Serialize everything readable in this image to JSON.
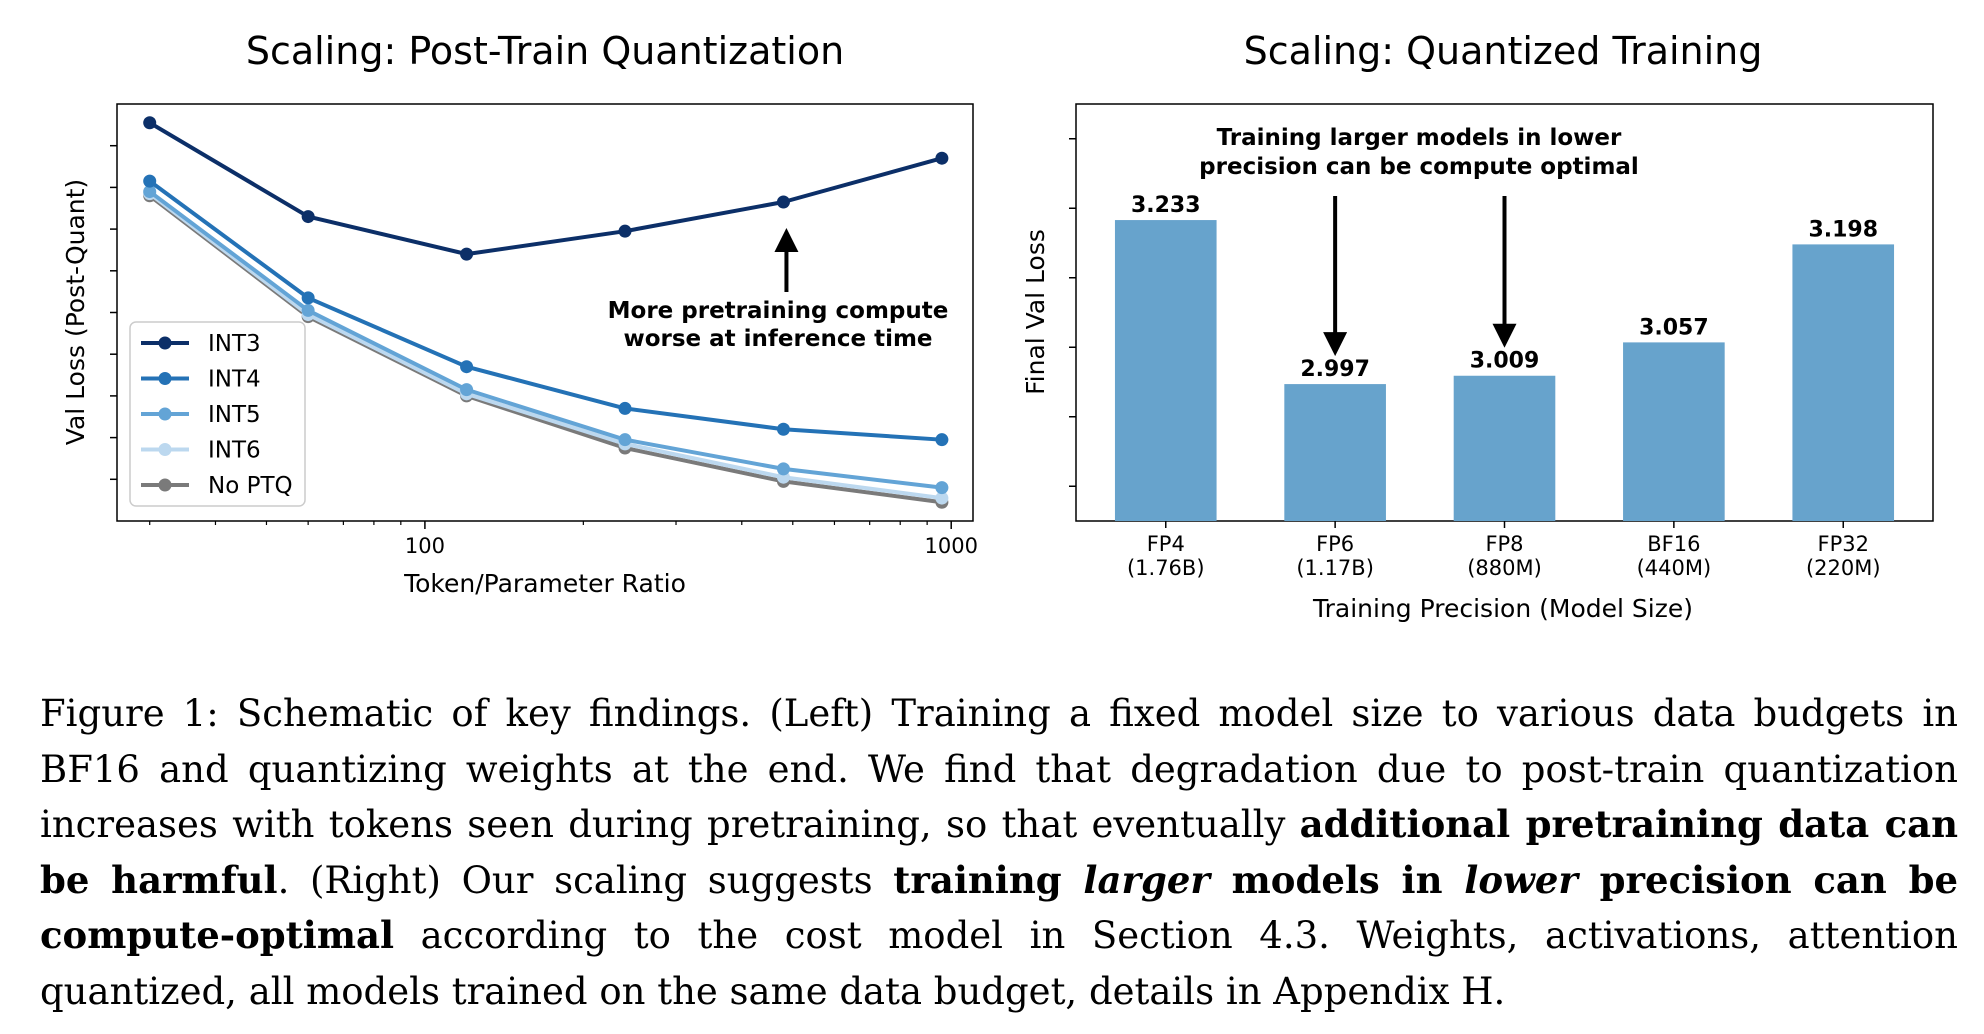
{
  "colors": {
    "INT3": "#0c2f68",
    "INT4": "#2472b6",
    "INT5": "#63a4d6",
    "INT6": "#bcd8ef",
    "No PTQ": "#7a7a7a",
    "bar": "#67a3cc"
  },
  "chart_data": [
    {
      "type": "line",
      "title": "Scaling: Post-Train Quantization",
      "xlabel": "Token/Parameter Ratio",
      "ylabel": "Val Loss (Post-Quant)",
      "xscale": "log",
      "xlim": [
        26,
        1100
      ],
      "ylim": [
        0,
        10
      ],
      "x": [
        30,
        60,
        120,
        240,
        480,
        960
      ],
      "xticks": [
        100,
        1000
      ],
      "xtick_labels": [
        "100",
        "1000"
      ],
      "grid": false,
      "legend_position": "lower-left",
      "series": [
        {
          "name": "INT3",
          "values": [
            9.55,
            7.3,
            6.4,
            6.95,
            7.65,
            8.7
          ]
        },
        {
          "name": "INT4",
          "values": [
            8.15,
            5.35,
            3.7,
            2.7,
            2.2,
            1.95
          ]
        },
        {
          "name": "INT5",
          "values": [
            7.9,
            5.05,
            3.15,
            1.95,
            1.25,
            0.8
          ]
        },
        {
          "name": "INT6",
          "values": [
            7.85,
            4.95,
            3.05,
            1.85,
            1.05,
            0.55
          ]
        },
        {
          "name": "No PTQ",
          "values": [
            7.8,
            4.9,
            3.0,
            1.75,
            0.95,
            0.45
          ]
        }
      ],
      "annotation": {
        "lines": [
          "More pretraining compute",
          "worse at inference time"
        ],
        "arrow_at_x": 480
      }
    },
    {
      "type": "bar",
      "title": "Scaling: Quantized Training",
      "xlabel": "Training Precision (Model Size)",
      "ylabel": "Final Val Loss",
      "ylim": [
        2.8,
        3.4
      ],
      "grid": false,
      "categories": [
        "FP4",
        "FP6",
        "FP8",
        "BF16",
        "FP32"
      ],
      "sublabels": [
        "(1.76B)",
        "(1.17B)",
        "(880M)",
        "(440M)",
        "(220M)"
      ],
      "values": [
        3.233,
        2.997,
        3.009,
        3.057,
        3.198
      ],
      "value_labels": [
        "3.233",
        "2.997",
        "3.009",
        "3.057",
        "3.198"
      ],
      "annotation": {
        "lines": [
          "Training larger models in lower",
          "precision can be compute optimal"
        ],
        "arrow_targets": [
          "FP6",
          "FP8"
        ]
      }
    }
  ],
  "caption": {
    "segments": [
      {
        "t": "Figure 1: Schematic of key findings. (Left) Training a fixed model size to various data budgets in BF16 and quantizing weights at the end. We find that degradation due to post-train quantization increases with tokens seen during pretraining, so that eventually ",
        "s": ""
      },
      {
        "t": "additional pretraining data can be harmful",
        "s": "b"
      },
      {
        "t": ". (Right) Our scaling suggests ",
        "s": ""
      },
      {
        "t": "training ",
        "s": "b"
      },
      {
        "t": "larger",
        "s": "bi"
      },
      {
        "t": " models in ",
        "s": "b"
      },
      {
        "t": "lower",
        "s": "bi"
      },
      {
        "t": " precision can be compute-optimal",
        "s": "b"
      },
      {
        "t": " according to the cost model in Section 4.3. Weights, activations, attention quantized, all models trained on the same data budget, details in Appendix H.",
        "s": ""
      }
    ]
  }
}
